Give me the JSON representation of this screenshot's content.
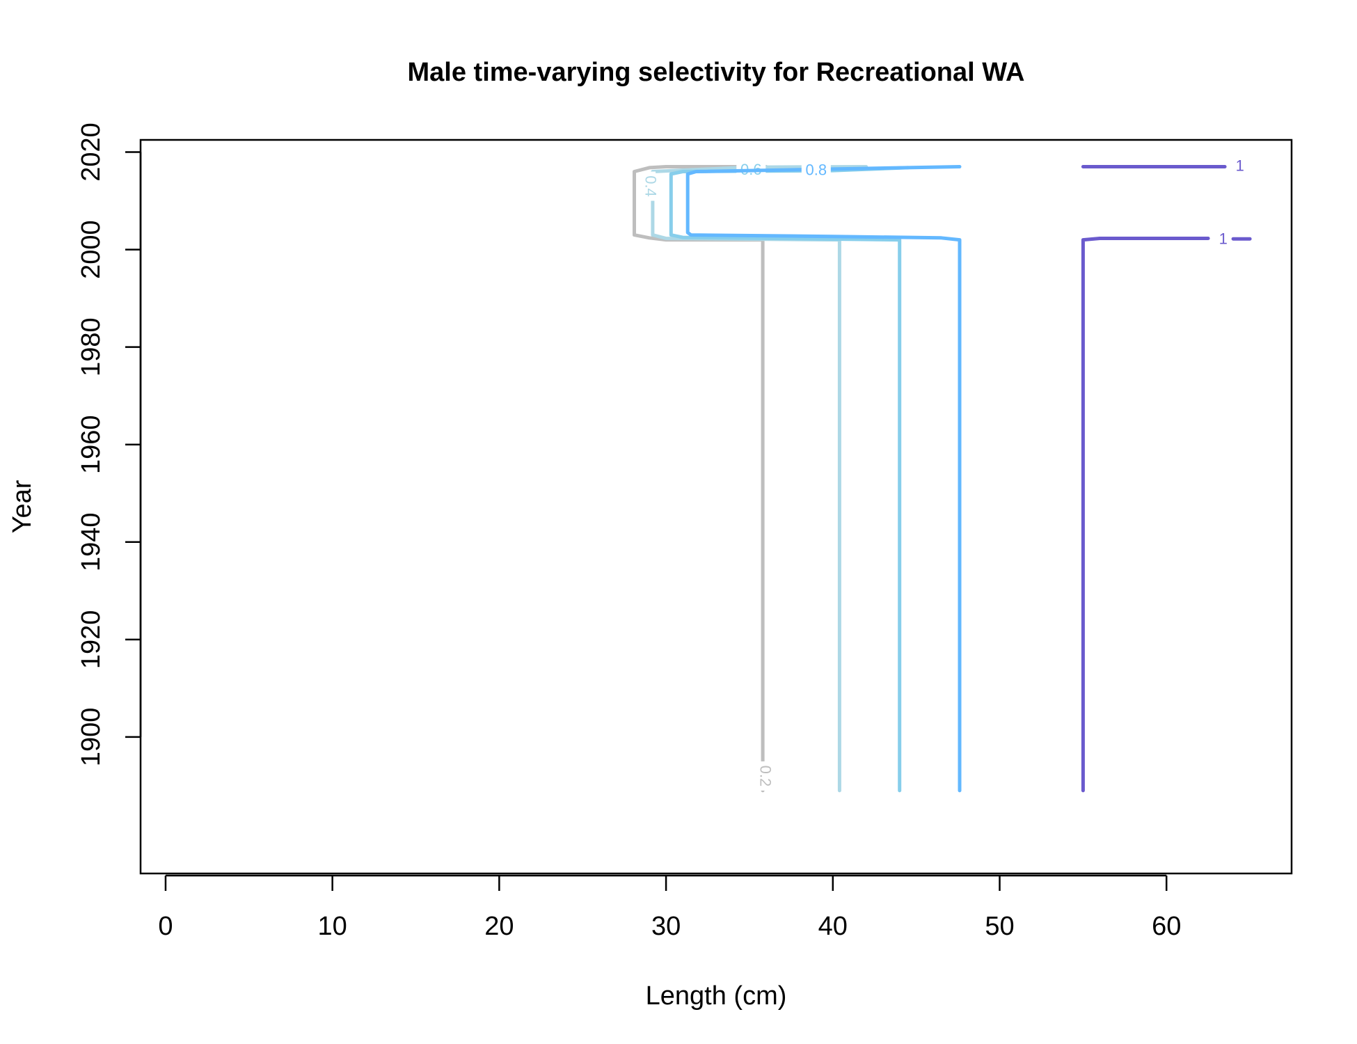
{
  "chart_data": {
    "type": "contour",
    "title": "Male time-varying selectivity for Recreational WA",
    "xlabel": "Length (cm)",
    "ylabel": "Year",
    "xlim": [
      -1.5,
      67.5
    ],
    "ylim": [
      1872,
      2022.5
    ],
    "xticks": [
      0,
      10,
      20,
      30,
      40,
      50,
      60
    ],
    "yticks": [
      1900,
      1920,
      1940,
      1960,
      1980,
      2000,
      2020
    ],
    "legend": "none",
    "grid": false,
    "contours": [
      {
        "level": "0.2",
        "color": "#BEBEBE",
        "label_at": [
          35.9,
          1892
        ],
        "label_rotated": true,
        "path": [
          [
            35.8,
            1889
          ],
          [
            35.8,
            2002
          ],
          [
            30.0,
            2002
          ],
          [
            29.0,
            2002.4
          ],
          [
            28.1,
            2003
          ],
          [
            28.1,
            2016
          ],
          [
            29.0,
            2016.8
          ],
          [
            30.0,
            2017
          ],
          [
            36.0,
            2017
          ]
        ]
      },
      {
        "level": "0.4",
        "color": "#ADD8E6",
        "label_at": [
          29.0,
          2013
        ],
        "label_rotated": true,
        "path": [
          [
            40.4,
            1889
          ],
          [
            40.4,
            2002
          ],
          [
            30.0,
            2002.3
          ],
          [
            29.2,
            2003
          ],
          [
            29.2,
            2009
          ],
          [
            29.2,
            2016
          ],
          [
            35.0,
            2016.9
          ],
          [
            42.0,
            2017
          ]
        ]
      },
      {
        "level": "0.6",
        "color": "#87CEEB",
        "label_at": [
          35.1,
          2016.2
        ],
        "label_rotated": false,
        "path": [
          [
            44.0,
            1889
          ],
          [
            44.0,
            2002
          ],
          [
            31.0,
            2002.5
          ],
          [
            30.3,
            2003
          ],
          [
            30.3,
            2015.5
          ],
          [
            31.0,
            2016
          ],
          [
            40.0,
            2016.2
          ],
          [
            44.5,
            2016.8
          ]
        ]
      },
      {
        "level": "0.8",
        "color": "#63B8FF",
        "label_at": [
          39.0,
          2016.1
        ],
        "label_rotated": false,
        "path": [
          [
            47.6,
            1889
          ],
          [
            47.6,
            2002
          ],
          [
            46.5,
            2002.4
          ],
          [
            40.0,
            2002.7
          ],
          [
            31.5,
            2003
          ],
          [
            31.3,
            2003.5
          ],
          [
            31.3,
            2015.5
          ],
          [
            31.8,
            2016
          ],
          [
            47.6,
            2017
          ]
        ]
      },
      {
        "level": "1",
        "color": "#6A5ACD",
        "label_at": [
          64.4,
          2017
        ],
        "label_rotated": false,
        "path": [
          [
            55.0,
            1889
          ],
          [
            55.0,
            2002
          ],
          [
            56.0,
            2002.3
          ],
          [
            62.5,
            2002.3
          ]
        ]
      },
      {
        "level": "1",
        "color": "#6A5ACD",
        "label_at": [
          63.4,
          2002
        ],
        "label_rotated": false,
        "path": [
          [
            64.0,
            2002.2
          ],
          [
            65.0,
            2002.2
          ]
        ]
      },
      {
        "level": "",
        "color": "#6A5ACD",
        "label_at": null,
        "label_rotated": false,
        "path": [
          [
            55.0,
            2017
          ],
          [
            63.5,
            2017
          ]
        ]
      }
    ]
  }
}
